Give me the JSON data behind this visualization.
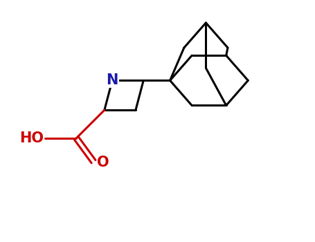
{
  "background_color": "#ffffff",
  "bond_color": "#000000",
  "n_color": "#1a1aaa",
  "acid_color": "#cc0000",
  "line_width": 2.2,
  "font_size": 15,
  "fig_width": 4.55,
  "fig_height": 3.5,
  "dpi": 100,
  "N_label": "N",
  "O_label": "O",
  "HO_label": "HO"
}
